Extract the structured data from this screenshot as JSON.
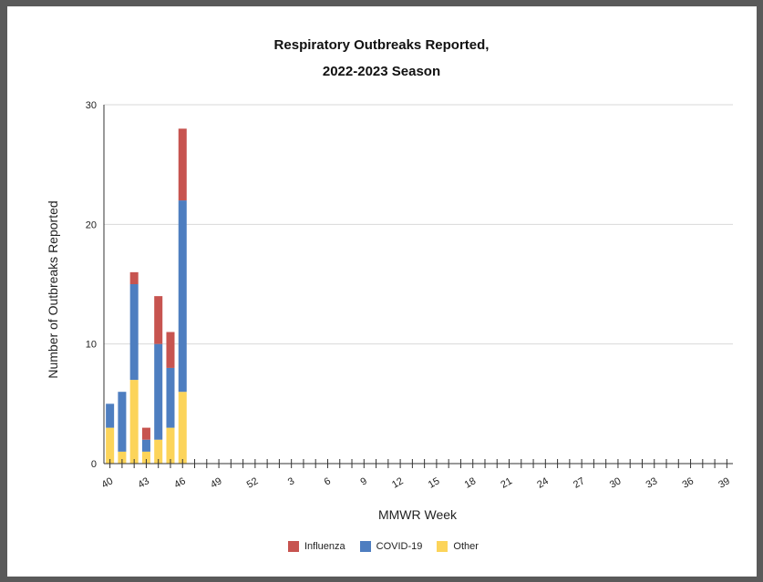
{
  "chart_data": {
    "type": "bar",
    "stacked": true,
    "title_line1": "Respiratory Outbreaks Reported,",
    "title_line2": "2022-2023 Season",
    "xlabel": "MMWR Week",
    "ylabel": "Number of Outbreaks Reported",
    "ylim": [
      0,
      30
    ],
    "yticks": [
      0,
      10,
      20,
      30
    ],
    "grid": true,
    "legend_position": "bottom",
    "weeks": [
      "40",
      "41",
      "42",
      "43",
      "44",
      "45",
      "46",
      "47",
      "48",
      "49",
      "50",
      "51",
      "52",
      "1",
      "2",
      "3",
      "4",
      "5",
      "6",
      "7",
      "8",
      "9",
      "10",
      "11",
      "12",
      "13",
      "14",
      "15",
      "16",
      "17",
      "18",
      "19",
      "20",
      "21",
      "22",
      "23",
      "24",
      "25",
      "26",
      "27",
      "28",
      "29",
      "30",
      "31",
      "32",
      "33",
      "34",
      "35",
      "36",
      "37",
      "38",
      "39"
    ],
    "tick_labels": [
      "40",
      "43",
      "46",
      "49",
      "52",
      "3",
      "6",
      "9",
      "12",
      "15",
      "18",
      "21",
      "24",
      "27",
      "30",
      "33",
      "36",
      "39"
    ],
    "series": [
      {
        "name": "Other",
        "color": "#fcd45a",
        "values": [
          3,
          1,
          7,
          1,
          2,
          3,
          6
        ]
      },
      {
        "name": "COVID-19",
        "color": "#4e7ec0",
        "values": [
          2,
          5,
          8,
          1,
          8,
          5,
          16
        ]
      },
      {
        "name": "Influenza",
        "color": "#c75450",
        "values": [
          0,
          0,
          1,
          1,
          4,
          3,
          6
        ]
      }
    ],
    "legend_order": [
      "Influenza",
      "COVID-19",
      "Other"
    ]
  }
}
